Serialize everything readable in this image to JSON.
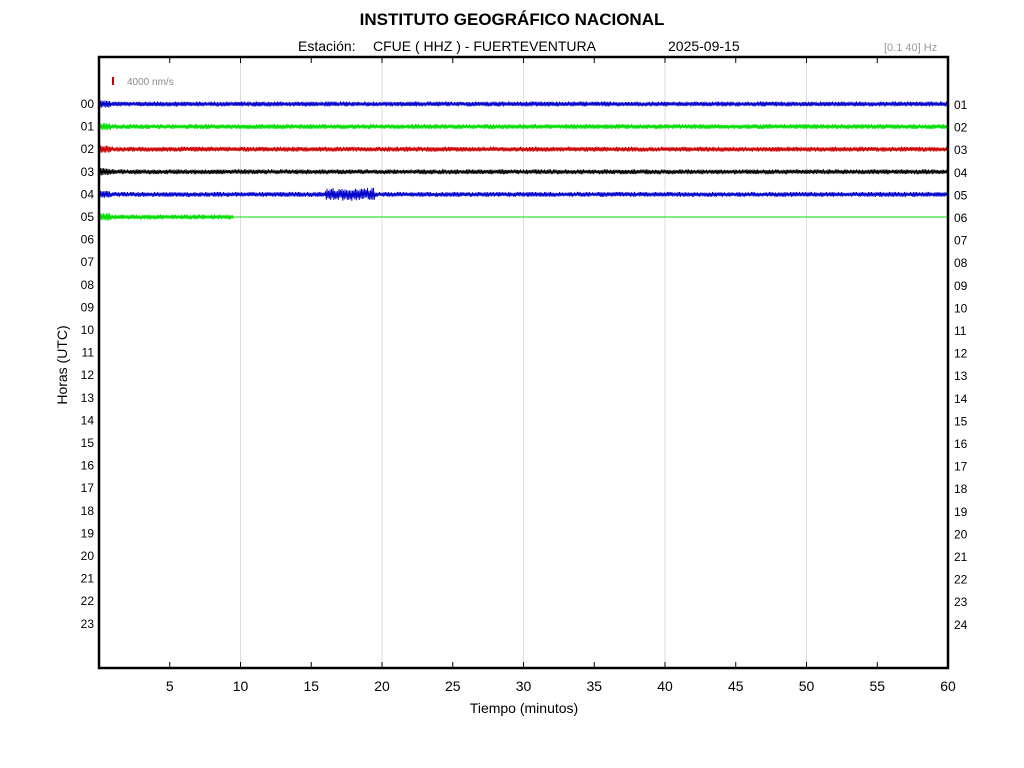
{
  "header": {
    "title": "INSTITUTO GEOGRÁFICO NACIONAL",
    "station_label": "Estación:",
    "station": "CFUE ( HHZ ) - FUERTEVENTURA",
    "date": "2025-09-15",
    "filter": "[0.1 40] Hz"
  },
  "colors": {
    "blue": "#0000cc",
    "green": "#00dd00",
    "red": "#cc0000",
    "black": "#000000",
    "scale_marker": "#cc0000",
    "grid": "#dddddd"
  },
  "chart_data": {
    "type": "line",
    "title": "INSTITUTO GEOGRÁFICO NACIONAL",
    "xlabel": "Tiempo (minutos)",
    "ylabel": "Horas (UTC)",
    "xlim": [
      0,
      60
    ],
    "x_ticks": [
      "5",
      "10",
      "15",
      "20",
      "25",
      "30",
      "35",
      "40",
      "45",
      "50",
      "55",
      "60"
    ],
    "grid": true,
    "scale_label": "4000 nm/s",
    "left_hour_labels": [
      "00",
      "01",
      "02",
      "03",
      "04",
      "05",
      "06",
      "07",
      "08",
      "09",
      "10",
      "11",
      "12",
      "13",
      "14",
      "15",
      "16",
      "17",
      "18",
      "19",
      "20",
      "21",
      "22",
      "23"
    ],
    "right_hour_labels": [
      "01",
      "02",
      "03",
      "04",
      "05",
      "06",
      "07",
      "08",
      "09",
      "10",
      "11",
      "12",
      "13",
      "14",
      "15",
      "16",
      "17",
      "18",
      "19",
      "20",
      "21",
      "22",
      "23",
      "24"
    ],
    "series": [
      {
        "hour": "00",
        "color": "blue",
        "end_minute": 60
      },
      {
        "hour": "01",
        "color": "green",
        "end_minute": 60
      },
      {
        "hour": "02",
        "color": "red",
        "end_minute": 60
      },
      {
        "hour": "03",
        "color": "black",
        "end_minute": 60
      },
      {
        "hour": "04",
        "color": "blue",
        "end_minute": 60,
        "event_minutes": [
          16,
          19.5
        ]
      },
      {
        "hour": "05",
        "color": "green",
        "end_minute": 9.5
      }
    ]
  }
}
